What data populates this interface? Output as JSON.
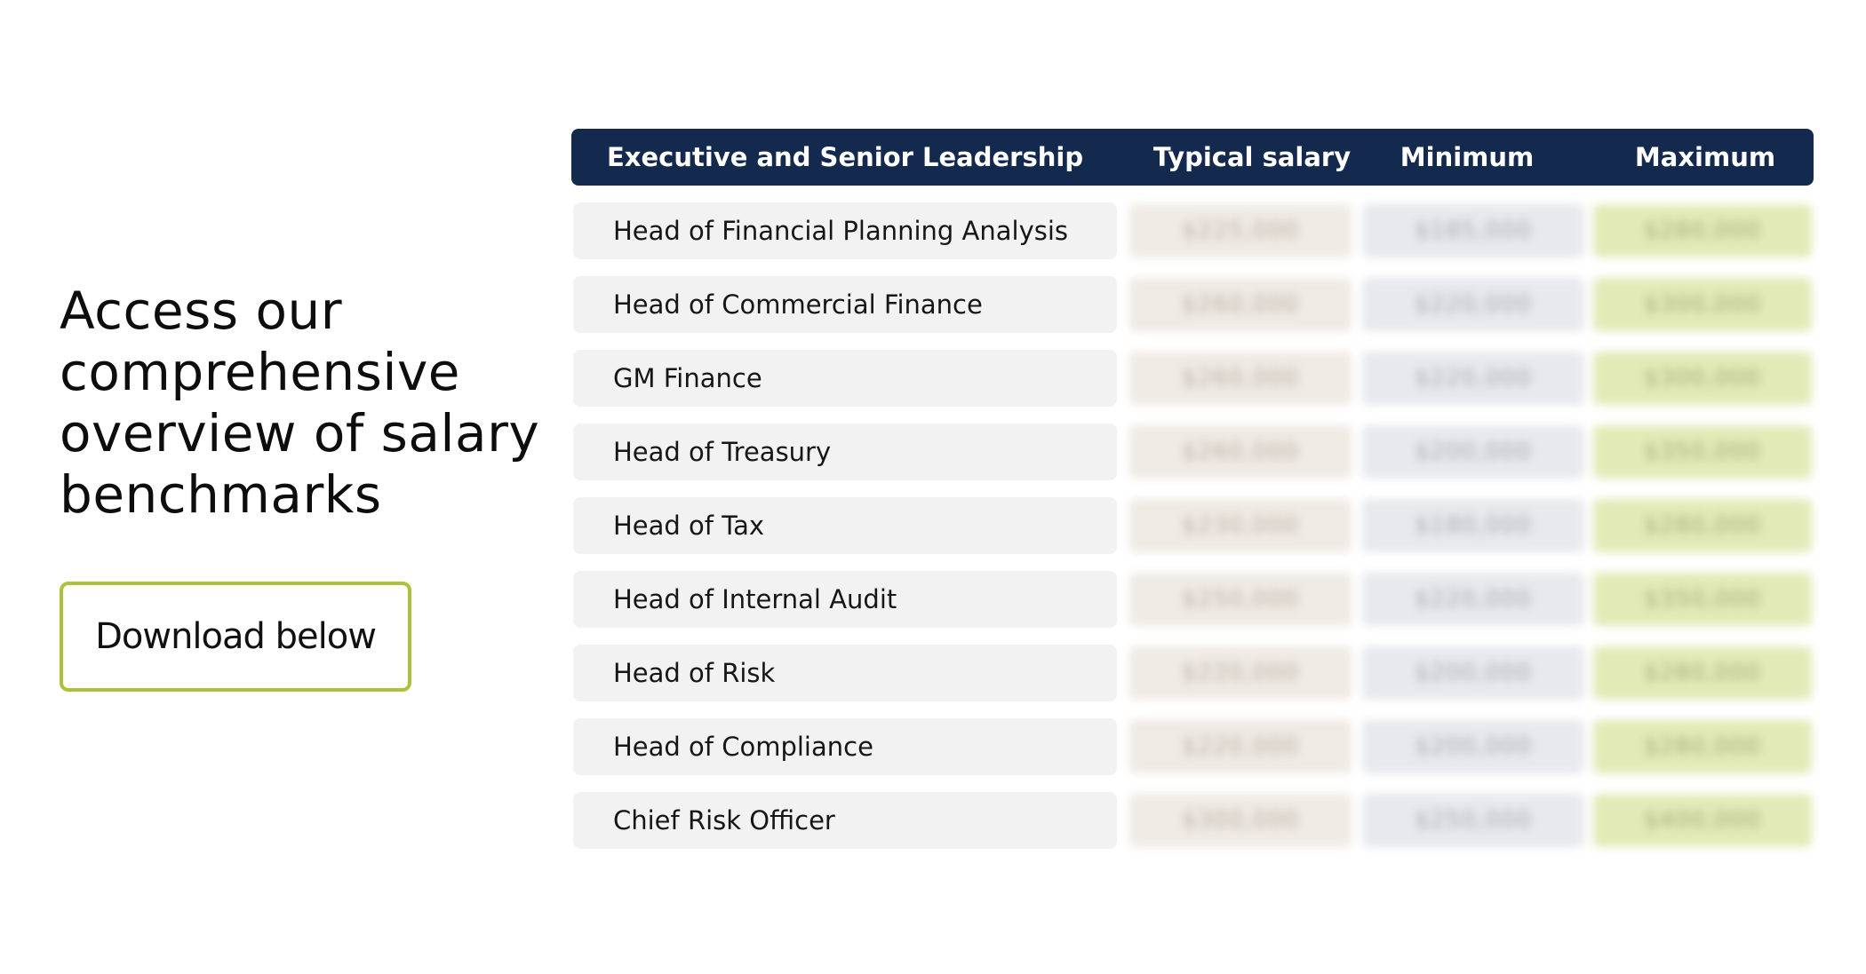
{
  "headline": "Access our comprehensive overview of salary benchmarks",
  "download_button": "Download below",
  "table": {
    "headers": {
      "role": "Executive and Senior Leadership",
      "typical": "Typical salary",
      "minimum": "Minimum",
      "maximum": "Maximum"
    },
    "rows": [
      {
        "role": "Head of Financial Planning Analysis",
        "typical": "$225,000",
        "minimum": "$185,000",
        "maximum": "$280,000"
      },
      {
        "role": "Head of Commercial Finance",
        "typical": "$260,000",
        "minimum": "$220,000",
        "maximum": "$300,000"
      },
      {
        "role": "GM Finance",
        "typical": "$260,000",
        "minimum": "$220,000",
        "maximum": "$300,000"
      },
      {
        "role": "Head of Treasury",
        "typical": "$260,000",
        "minimum": "$200,000",
        "maximum": "$350,000"
      },
      {
        "role": "Head of Tax",
        "typical": "$230,000",
        "minimum": "$180,000",
        "maximum": "$280,000"
      },
      {
        "role": "Head of Internal Audit",
        "typical": "$250,000",
        "minimum": "$220,000",
        "maximum": "$350,000"
      },
      {
        "role": "Head of Risk",
        "typical": "$220,000",
        "minimum": "$200,000",
        "maximum": "$280,000"
      },
      {
        "role": "Head of Compliance",
        "typical": "$220,000",
        "minimum": "$200,000",
        "maximum": "$280,000"
      },
      {
        "role": "Chief Risk Officer",
        "typical": "$300,000",
        "minimum": "$250,000",
        "maximum": "$400,000"
      }
    ]
  },
  "colors": {
    "header_bg": "#13294d",
    "row_bg": "#f1f2f1",
    "typical_bg": "#efeae4",
    "minimum_bg": "#e7e9ec",
    "maximum_bg": "#e2ebb8",
    "button_border": "#a9c43a"
  }
}
